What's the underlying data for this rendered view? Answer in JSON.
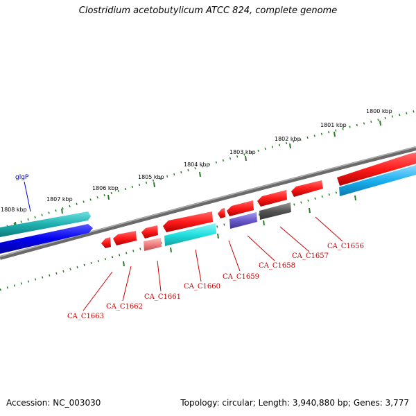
{
  "title": "Clostridium acetobutylicum ATCC 824, complete genome",
  "accession_label": "Accession: NC_003030",
  "info_label": "Topology: circular; Length: 3,940,880 bp; Genes: 3,777",
  "ticks": [
    {
      "label": "1800 kbp"
    },
    {
      "label": "1801 kbp"
    },
    {
      "label": "1802 kbp"
    },
    {
      "label": "1803 kbp"
    },
    {
      "label": "1804 kbp"
    },
    {
      "label": "1805 kbp"
    },
    {
      "label": "1806 kbp"
    },
    {
      "label": "1807 kbp"
    },
    {
      "label": "1808 kbp"
    }
  ],
  "genes_outer": [
    {
      "name": "glgP",
      "color": "#1fb8b8",
      "strand": "+"
    }
  ],
  "gene_labels": [
    {
      "name": "glgP"
    },
    {
      "name": "CA_C1663"
    },
    {
      "name": "CA_C1662"
    },
    {
      "name": "CA_C1661"
    },
    {
      "name": "CA_C1660"
    },
    {
      "name": "CA_C1659"
    },
    {
      "name": "CA_C1658"
    },
    {
      "name": "CA_C1657"
    },
    {
      "name": "CA_C1656"
    }
  ],
  "colors": {
    "backbone": "#888888",
    "tick": "#2a7a2a",
    "cds_red": "#ff1a1a",
    "cds_cyan": "#22e0e0",
    "cds_blue": "#0000ee",
    "cds_teal": "#1fb0b0",
    "cds_purple": "#6a5acd",
    "cds_grey": "#555555",
    "cds_pink": "#f08080",
    "label_line": "#cc0000"
  }
}
